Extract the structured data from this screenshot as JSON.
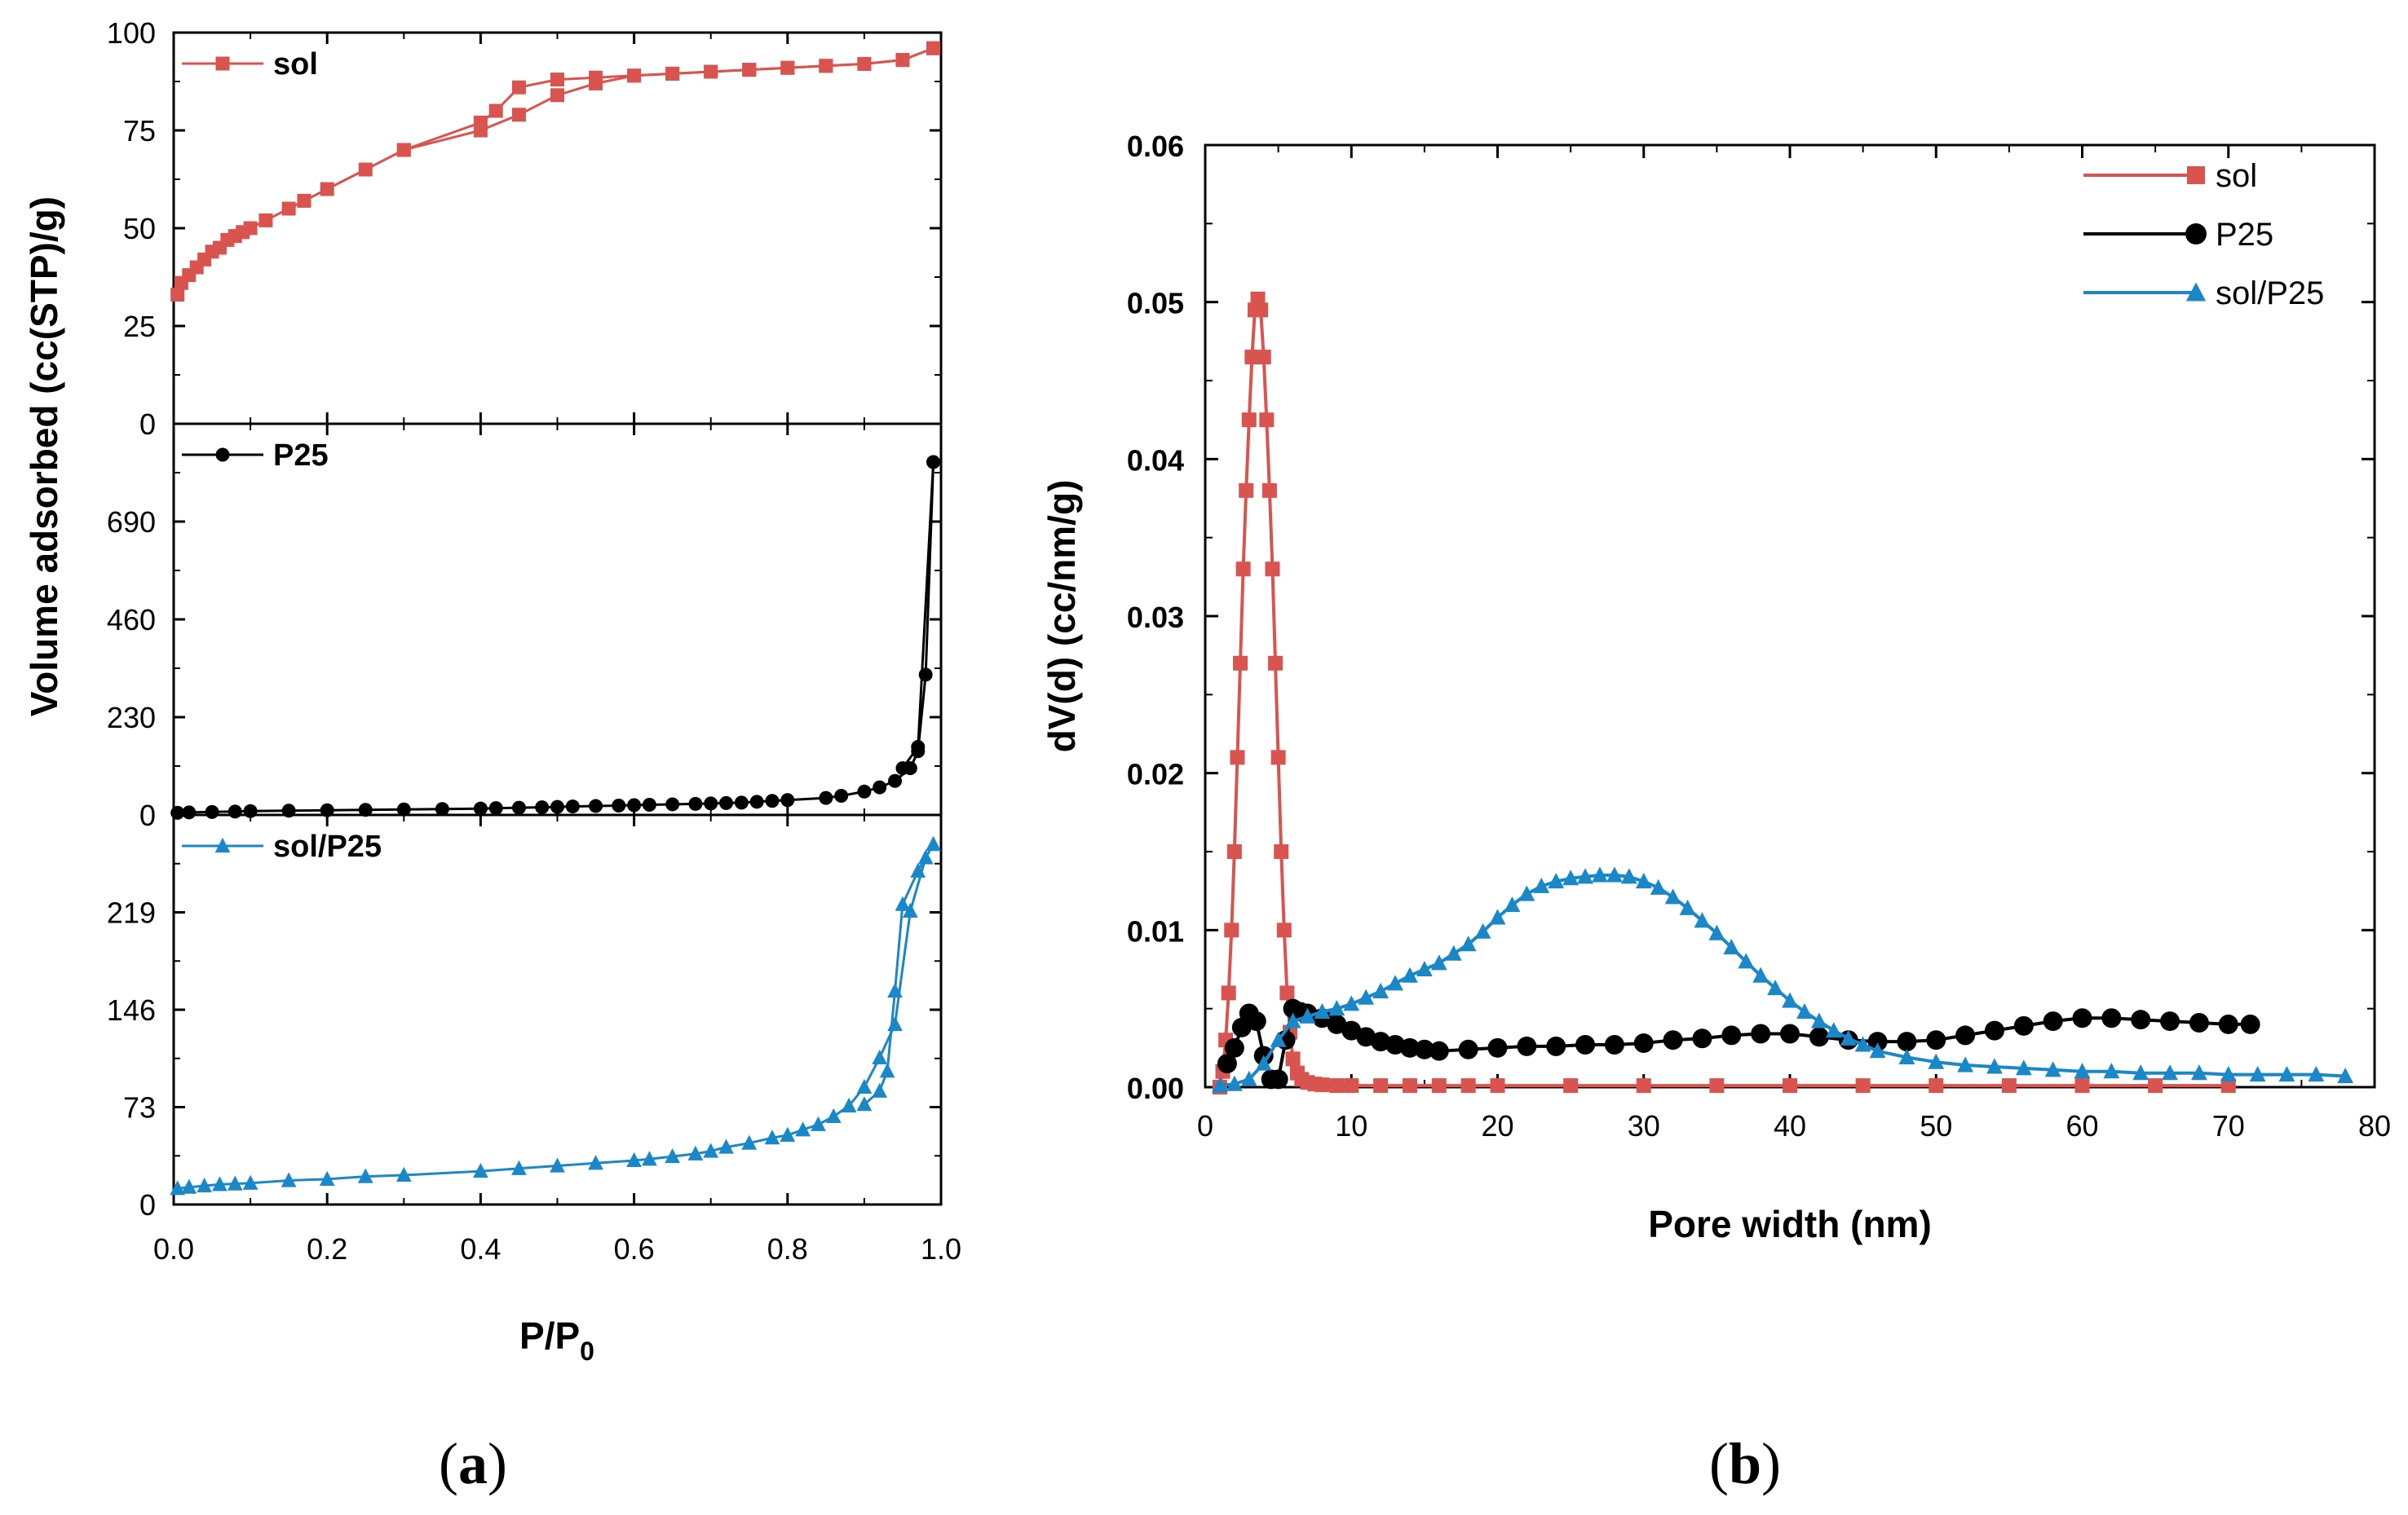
{
  "figure": {
    "caption_a": "a",
    "caption_b": "b"
  },
  "colors": {
    "sol": "#d9534f",
    "P25": "#000000",
    "solP25": "#1a87c9"
  },
  "chart_data": [
    {
      "type": "line",
      "name": "panel-a",
      "xlabel_main": "P/P",
      "xlabel_sub": "0",
      "ylabel": "Volume adsorbed (cc(STP)/g)",
      "xlim": [
        0,
        1.0
      ],
      "xticks": [
        "0.0",
        "0.2",
        "0.4",
        "0.6",
        "0.8",
        "1.0"
      ],
      "subplots": [
        {
          "name": "sol",
          "legend": "sol",
          "ylim": [
            0,
            100
          ],
          "yticks": [
            "0",
            "25",
            "50",
            "75",
            "100"
          ],
          "marker": "square",
          "color": "#d9534f",
          "adsorption": {
            "x": [
              0.005,
              0.01,
              0.02,
              0.03,
              0.04,
              0.05,
              0.06,
              0.07,
              0.08,
              0.09,
              0.1,
              0.12,
              0.15,
              0.17,
              0.2,
              0.25,
              0.3,
              0.4,
              0.42,
              0.45,
              0.5,
              0.55,
              0.6,
              0.65,
              0.7,
              0.75,
              0.8,
              0.85,
              0.9,
              0.95,
              0.99
            ],
            "y": [
              33,
              36,
              38,
              40,
              42,
              44,
              45,
              47,
              48,
              49,
              50,
              52,
              55,
              57,
              60,
              65,
              70,
              77,
              80,
              86,
              88,
              88.5,
              89,
              89.5,
              90,
              90.5,
              91,
              91.5,
              92,
              93,
              96
            ]
          },
          "desorption": {
            "x": [
              0.99,
              0.95,
              0.9,
              0.85,
              0.8,
              0.75,
              0.7,
              0.65,
              0.6,
              0.55,
              0.5,
              0.45,
              0.4,
              0.3
            ],
            "y": [
              96,
              93,
              92,
              91.5,
              91,
              90.5,
              90,
              89.5,
              89,
              87,
              84,
              79,
              75,
              70
            ]
          }
        },
        {
          "name": "P25",
          "legend": "P25",
          "ylim": [
            0,
            920
          ],
          "yticks": [
            "0",
            "230",
            "460",
            "690"
          ],
          "marker": "circle",
          "color": "#000000",
          "adsorption": {
            "x": [
              0.005,
              0.02,
              0.05,
              0.08,
              0.1,
              0.15,
              0.2,
              0.25,
              0.3,
              0.35,
              0.4,
              0.42,
              0.45,
              0.48,
              0.5,
              0.52,
              0.55,
              0.58,
              0.6,
              0.62,
              0.65,
              0.68,
              0.7,
              0.72,
              0.74,
              0.76,
              0.78,
              0.8,
              0.85,
              0.87,
              0.9,
              0.92,
              0.94,
              0.96,
              0.97,
              0.98,
              0.99
            ],
            "y": [
              5,
              6,
              7,
              8,
              9,
              10,
              11,
              12,
              13,
              14,
              15,
              16,
              17,
              18,
              19,
              20,
              21,
              22,
              23,
              24,
              25,
              26,
              27,
              28,
              29,
              31,
              33,
              35,
              40,
              45,
              55,
              65,
              80,
              110,
              150,
              330,
              830
            ]
          },
          "desorption": {
            "x": [
              0.99,
              0.97,
              0.95
            ],
            "y": [
              830,
              160,
              110
            ]
          }
        },
        {
          "name": "solP25",
          "legend": "sol/P25",
          "ylim": [
            0,
            292
          ],
          "yticks": [
            "0",
            "73",
            "146",
            "219"
          ],
          "marker": "triangle",
          "color": "#1a87c9",
          "adsorption": {
            "x": [
              0.005,
              0.02,
              0.04,
              0.06,
              0.08,
              0.1,
              0.15,
              0.2,
              0.25,
              0.3,
              0.4,
              0.45,
              0.5,
              0.55,
              0.6,
              0.62,
              0.65,
              0.68,
              0.7,
              0.72,
              0.75,
              0.78,
              0.8,
              0.82,
              0.84,
              0.86,
              0.88,
              0.9,
              0.92,
              0.94,
              0.96,
              0.98,
              0.99
            ],
            "y": [
              12,
              13,
              14,
              15,
              15.5,
              16,
              18,
              19,
              21,
              22,
              25,
              27,
              29,
              31,
              33,
              34,
              36,
              38,
              40,
              43,
              46,
              50,
              52,
              56,
              60,
              66,
              74,
              88,
              110,
              135,
              220,
              260,
              270
            ]
          },
          "desorption": {
            "x": [
              0.99,
              0.97,
              0.95,
              0.94,
              0.93,
              0.92,
              0.9
            ],
            "y": [
              270,
              250,
              225,
              160,
              100,
              85,
              75
            ]
          }
        }
      ]
    },
    {
      "type": "line",
      "name": "panel-b",
      "xlabel": "Pore width (nm)",
      "ylabel": "dV(d) (cc/nm/g)",
      "xlim": [
        0,
        80
      ],
      "ylim": [
        0,
        0.06
      ],
      "xticks": [
        "0",
        "10",
        "20",
        "30",
        "40",
        "50",
        "60",
        "70",
        "80"
      ],
      "yticks": [
        "0.00",
        "0.01",
        "0.02",
        "0.03",
        "0.04",
        "0.05",
        "0.06"
      ],
      "legend_position": "top-right",
      "series": [
        {
          "name": "sol",
          "color": "#d9534f",
          "marker": "square",
          "x": [
            1.0,
            1.2,
            1.4,
            1.6,
            1.8,
            2.0,
            2.2,
            2.4,
            2.6,
            2.8,
            3.0,
            3.2,
            3.4,
            3.6,
            3.8,
            4.0,
            4.2,
            4.4,
            4.6,
            4.8,
            5.0,
            5.2,
            5.4,
            5.6,
            5.8,
            6.0,
            6.3,
            6.6,
            7.0,
            7.5,
            8,
            9,
            10,
            12,
            14,
            16,
            18,
            20,
            25,
            30,
            35,
            40,
            45,
            50,
            55,
            60,
            65,
            70
          ],
          "y": [
            0.0,
            0.001,
            0.003,
            0.006,
            0.01,
            0.015,
            0.021,
            0.027,
            0.033,
            0.038,
            0.0425,
            0.0465,
            0.0495,
            0.0502,
            0.0495,
            0.0465,
            0.0425,
            0.038,
            0.033,
            0.027,
            0.021,
            0.015,
            0.01,
            0.006,
            0.0035,
            0.0018,
            0.0009,
            0.0005,
            0.0003,
            0.0002,
            0.00015,
            0.0001,
            0.0001,
            0.0001,
            0.0001,
            0.0001,
            0.0001,
            0.0001,
            0.0001,
            0.0001,
            0.0001,
            0.0001,
            0.0001,
            0.0001,
            0.0001,
            0.0001,
            0.0001,
            0.0001
          ]
        },
        {
          "name": "P25",
          "color": "#000000",
          "marker": "circle",
          "x": [
            1.5,
            2.0,
            2.5,
            3.0,
            3.5,
            4.0,
            4.5,
            5.0,
            5.5,
            6.0,
            6.5,
            7.0,
            8,
            9,
            10,
            11,
            12,
            13,
            14,
            15,
            16,
            18,
            20,
            22,
            24,
            26,
            28,
            30,
            32,
            34,
            36,
            38,
            40,
            42,
            44,
            46,
            48,
            50,
            52,
            54,
            56,
            58,
            60,
            62,
            64,
            66,
            68,
            70,
            71.5
          ],
          "y": [
            0.0015,
            0.0025,
            0.0038,
            0.0047,
            0.0042,
            0.002,
            0.0005,
            0.0005,
            0.003,
            0.005,
            0.0048,
            0.0047,
            0.0044,
            0.004,
            0.0036,
            0.0032,
            0.0029,
            0.0027,
            0.0025,
            0.0024,
            0.0023,
            0.0024,
            0.0025,
            0.0026,
            0.0026,
            0.0027,
            0.0027,
            0.0028,
            0.003,
            0.0031,
            0.0033,
            0.0034,
            0.0034,
            0.0032,
            0.003,
            0.0029,
            0.0029,
            0.003,
            0.0033,
            0.0036,
            0.0039,
            0.0042,
            0.0044,
            0.0044,
            0.0043,
            0.0042,
            0.0041,
            0.004,
            0.004
          ]
        },
        {
          "name": "sol/P25",
          "color": "#1a87c9",
          "marker": "triangle",
          "x": [
            1.0,
            2.0,
            3.0,
            4.0,
            5.0,
            6.0,
            7.0,
            8.0,
            9.0,
            10,
            11,
            12,
            13,
            14,
            15,
            16,
            17,
            18,
            19,
            20,
            21,
            22,
            23,
            24,
            25,
            26,
            27,
            28,
            29,
            30,
            31,
            32,
            33,
            34,
            35,
            36,
            37,
            38,
            39,
            40,
            41,
            42,
            43,
            44,
            45,
            46,
            48,
            50,
            52,
            54,
            56,
            58,
            60,
            62,
            64,
            66,
            68,
            70,
            72,
            74,
            76,
            78
          ],
          "y": [
            0.0001,
            0.0002,
            0.0005,
            0.0015,
            0.003,
            0.0042,
            0.0045,
            0.0048,
            0.005,
            0.0053,
            0.0057,
            0.0061,
            0.0066,
            0.0071,
            0.0075,
            0.0079,
            0.0085,
            0.0091,
            0.0099,
            0.0108,
            0.0116,
            0.0123,
            0.0128,
            0.0131,
            0.0133,
            0.0134,
            0.0135,
            0.0135,
            0.0134,
            0.0131,
            0.0127,
            0.0121,
            0.0114,
            0.0106,
            0.0098,
            0.0089,
            0.008,
            0.0071,
            0.0063,
            0.0055,
            0.0048,
            0.0042,
            0.0036,
            0.0031,
            0.0027,
            0.0023,
            0.0019,
            0.0016,
            0.0014,
            0.0013,
            0.0012,
            0.0011,
            0.001,
            0.001,
            0.0009,
            0.0009,
            0.0009,
            0.0008,
            0.0008,
            0.0008,
            0.0008,
            0.0007
          ]
        }
      ]
    }
  ]
}
